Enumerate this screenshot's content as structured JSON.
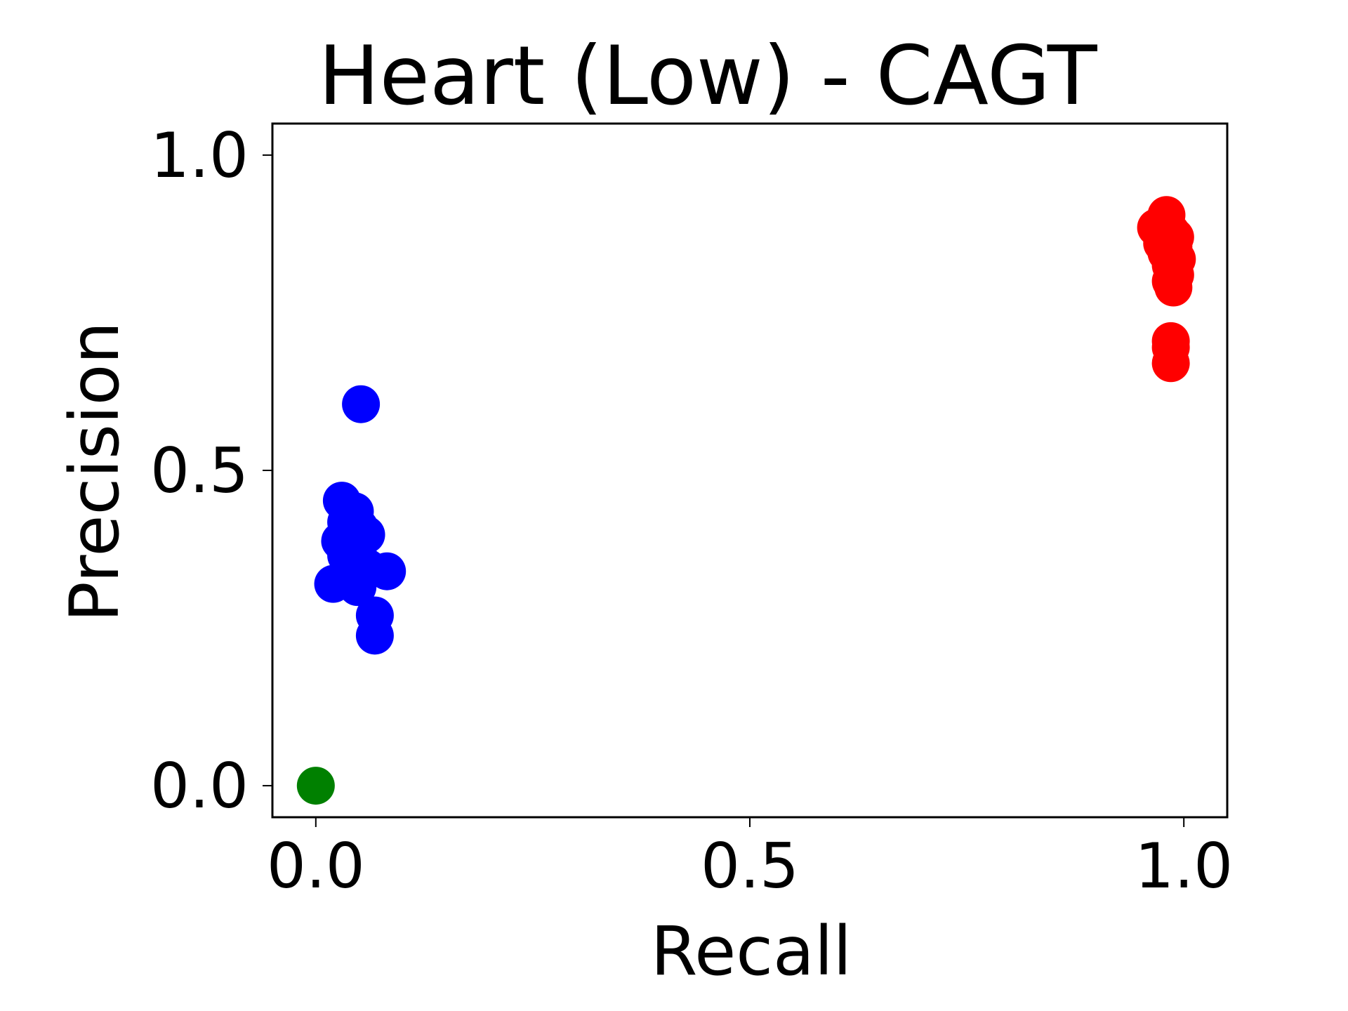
{
  "chart_data": {
    "type": "scatter",
    "title": "Heart (Low) - CAGT",
    "xlabel": "Recall",
    "ylabel": "Precision",
    "xlim": [
      -0.05,
      1.05
    ],
    "ylim": [
      -0.05,
      1.05
    ],
    "xticks": [
      0.0,
      0.5,
      1.0
    ],
    "xtick_labels": [
      "0.0",
      "0.5",
      "1.0"
    ],
    "yticks": [
      0.0,
      0.5,
      1.0
    ],
    "ytick_labels": [
      "0.0",
      "0.5",
      "1.0"
    ],
    "grid": false,
    "legend": false,
    "series": [
      {
        "color": "#008000",
        "points": [
          [
            0.0,
            0.0
          ]
        ]
      },
      {
        "color": "#0000ff",
        "points": [
          [
            0.052,
            0.605
          ],
          [
            0.03,
            0.452
          ],
          [
            0.045,
            0.435
          ],
          [
            0.035,
            0.418
          ],
          [
            0.05,
            0.41
          ],
          [
            0.058,
            0.398
          ],
          [
            0.028,
            0.388
          ],
          [
            0.04,
            0.38
          ],
          [
            0.045,
            0.37
          ],
          [
            0.05,
            0.36
          ],
          [
            0.035,
            0.365
          ],
          [
            0.055,
            0.35
          ],
          [
            0.06,
            0.345
          ],
          [
            0.042,
            0.335
          ],
          [
            0.082,
            0.34
          ],
          [
            0.02,
            0.32
          ],
          [
            0.048,
            0.315
          ],
          [
            0.068,
            0.27
          ],
          [
            0.068,
            0.238
          ]
        ]
      },
      {
        "color": "#ff0000",
        "points": [
          [
            0.98,
            0.905
          ],
          [
            0.968,
            0.885
          ],
          [
            0.985,
            0.878
          ],
          [
            0.99,
            0.87
          ],
          [
            0.975,
            0.86
          ],
          [
            0.988,
            0.855
          ],
          [
            0.98,
            0.845
          ],
          [
            0.992,
            0.835
          ],
          [
            0.985,
            0.825
          ],
          [
            0.99,
            0.81
          ],
          [
            0.985,
            0.8
          ],
          [
            0.988,
            0.79
          ],
          [
            0.985,
            0.705
          ],
          [
            0.985,
            0.695
          ],
          [
            0.985,
            0.67
          ]
        ]
      }
    ]
  }
}
